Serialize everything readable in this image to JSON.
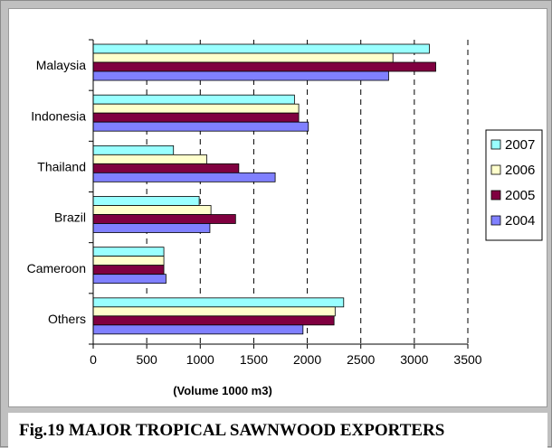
{
  "chart_data": {
    "type": "bar",
    "orientation": "horizontal",
    "categories": [
      "Malaysia",
      "Indonesia",
      "Thailand",
      "Brazil",
      "Cameroon",
      "Others"
    ],
    "series": [
      {
        "name": "2007",
        "color": "#99ffff",
        "values": [
          3140,
          1880,
          750,
          990,
          660,
          2340
        ]
      },
      {
        "name": "2006",
        "color": "#ffffcc",
        "values": [
          2800,
          1920,
          1060,
          1100,
          660,
          2260
        ]
      },
      {
        "name": "2005",
        "color": "#800040",
        "values": [
          3200,
          1920,
          1360,
          1330,
          660,
          2250
        ]
      },
      {
        "name": "2004",
        "color": "#8080ff",
        "values": [
          2760,
          2010,
          1700,
          1090,
          680,
          1960
        ]
      }
    ],
    "x_ticks": [
      "0",
      "500",
      "1000",
      "1500",
      "2000",
      "2500",
      "3000",
      "3500"
    ],
    "xlim": [
      0,
      3500
    ],
    "xlabel": "(Volume 1000 m3)",
    "ylabel": "",
    "title": "",
    "grid": "vertical dashed",
    "legend_position": "right"
  },
  "caption": "Fig.19  MAJOR TROPICAL SAWNWOOD EXPORTERS"
}
